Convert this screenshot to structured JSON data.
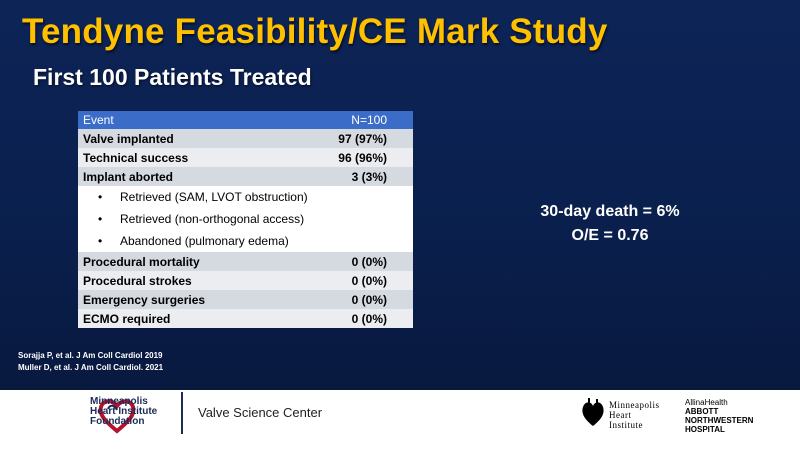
{
  "title": "Tendyne Feasibility/CE Mark Study",
  "subtitle": "First 100 Patients Treated",
  "table": {
    "header": {
      "event": "Event",
      "n": "N=100"
    },
    "rows": [
      {
        "label": "Valve implanted",
        "value": "97 (97%)"
      },
      {
        "label": "Technical success",
        "value": "96 (96%)"
      },
      {
        "label": "Implant aborted",
        "value": "3 (3%)"
      },
      {
        "label": "Retrieved (SAM, LVOT obstruction)",
        "value": ""
      },
      {
        "label": "Retrieved (non-orthogonal access)",
        "value": ""
      },
      {
        "label": "Abandoned (pulmonary edema)",
        "value": ""
      },
      {
        "label": "Procedural mortality",
        "value": "0 (0%)"
      },
      {
        "label": "Procedural strokes",
        "value": "0 (0%)"
      },
      {
        "label": "Emergency surgeries",
        "value": "0 (0%)"
      },
      {
        "label": "ECMO required",
        "value": "0 (0%)"
      }
    ]
  },
  "note": {
    "line1": "30-day death = 6%",
    "line2": "O/E  = 0.76"
  },
  "references": [
    "Sorajja P, et al. J Am  Coll Cardiol 2019",
    "Muller D, et al. J Am  Coll Cardiol. 2021"
  ],
  "footer": {
    "mhif": [
      "Minneapolis",
      "Heart Institute",
      "Foundation"
    ],
    "center": "Valve Science Center",
    "mhi": [
      "Minneapolis",
      "Heart",
      "Institute"
    ],
    "allina": "AllinaHealth",
    "anw": [
      "ABBOTT",
      "NORTHWESTERN",
      "HOSPITAL"
    ]
  },
  "colors": {
    "title": "#ffc000",
    "background": "#0d2457",
    "header": "#3b6cc8"
  }
}
